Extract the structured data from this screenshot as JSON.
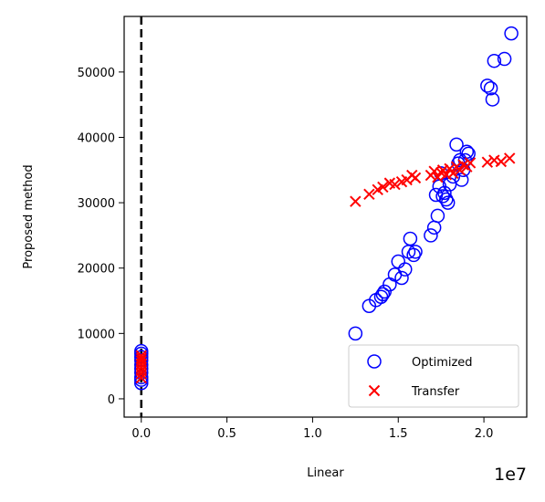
{
  "chart_data": {
    "type": "scatter",
    "xlabel": "Linear",
    "ylabel": "Proposed method",
    "x_offset_label": "1e7",
    "xlim": [
      -0.1,
      2.25
    ],
    "ylim": [
      -2800,
      58500
    ],
    "x_ticks": [
      0.0,
      0.5,
      1.0,
      1.5,
      2.0
    ],
    "x_tick_labels": [
      "0.0",
      "0.5",
      "1.0",
      "1.5",
      "2.0"
    ],
    "y_ticks": [
      0,
      10000,
      20000,
      30000,
      40000,
      50000
    ],
    "y_tick_labels": [
      "0",
      "10000",
      "20000",
      "30000",
      "40000",
      "50000"
    ],
    "reference_line_x": 0,
    "legend_position": "lower-right",
    "colors": {
      "optimized": "#0000ff",
      "transfer": "#ff0000",
      "reference_line": "#000000"
    },
    "series": [
      {
        "name": "Optimized",
        "marker": "open-circle",
        "x": [
          0.0,
          0.0,
          0.0,
          0.0,
          0.0,
          0.0,
          0.0,
          0.0,
          0.0,
          0.0,
          1.25,
          1.33,
          1.37,
          1.4,
          1.41,
          1.42,
          1.45,
          1.48,
          1.5,
          1.52,
          1.54,
          1.56,
          1.57,
          1.59,
          1.6,
          1.69,
          1.71,
          1.72,
          1.73,
          1.74,
          1.75,
          1.76,
          1.77,
          1.78,
          1.79,
          1.8,
          1.82,
          1.84,
          1.85,
          1.86,
          1.87,
          1.88,
          1.89,
          1.9,
          1.91,
          2.02,
          2.04,
          2.05,
          2.06,
          2.12,
          2.16
        ],
        "y": [
          2400,
          2900,
          3300,
          4000,
          4600,
          5200,
          5900,
          6400,
          6900,
          7300,
          10000,
          14200,
          15100,
          15600,
          16000,
          16400,
          17500,
          19000,
          21000,
          18500,
          19800,
          22500,
          24500,
          22000,
          22500,
          25000,
          26200,
          31200,
          28000,
          32500,
          34500,
          31000,
          31500,
          30500,
          30000,
          32800,
          34000,
          38900,
          36000,
          36500,
          33500,
          35000,
          36500,
          37800,
          37500,
          47900,
          47500,
          45800,
          51700,
          52000,
          55900
        ]
      },
      {
        "name": "Transfer",
        "marker": "x",
        "x": [
          0.0,
          0.0,
          0.0,
          0.0,
          0.0,
          0.0,
          0.0,
          0.0,
          1.25,
          1.33,
          1.38,
          1.41,
          1.45,
          1.48,
          1.52,
          1.55,
          1.58,
          1.6,
          1.69,
          1.71,
          1.73,
          1.75,
          1.76,
          1.78,
          1.8,
          1.82,
          1.84,
          1.86,
          1.88,
          1.9,
          1.92,
          2.02,
          2.06,
          2.1,
          2.15
        ],
        "y": [
          3200,
          3800,
          4300,
          4800,
          5300,
          5800,
          6200,
          6600,
          30200,
          31300,
          32000,
          32400,
          33000,
          32800,
          33200,
          33500,
          34200,
          33800,
          34200,
          34800,
          33900,
          34600,
          35000,
          34300,
          35200,
          34500,
          35500,
          35000,
          35800,
          35500,
          36100,
          36200,
          36500,
          36300,
          36800
        ]
      }
    ]
  }
}
